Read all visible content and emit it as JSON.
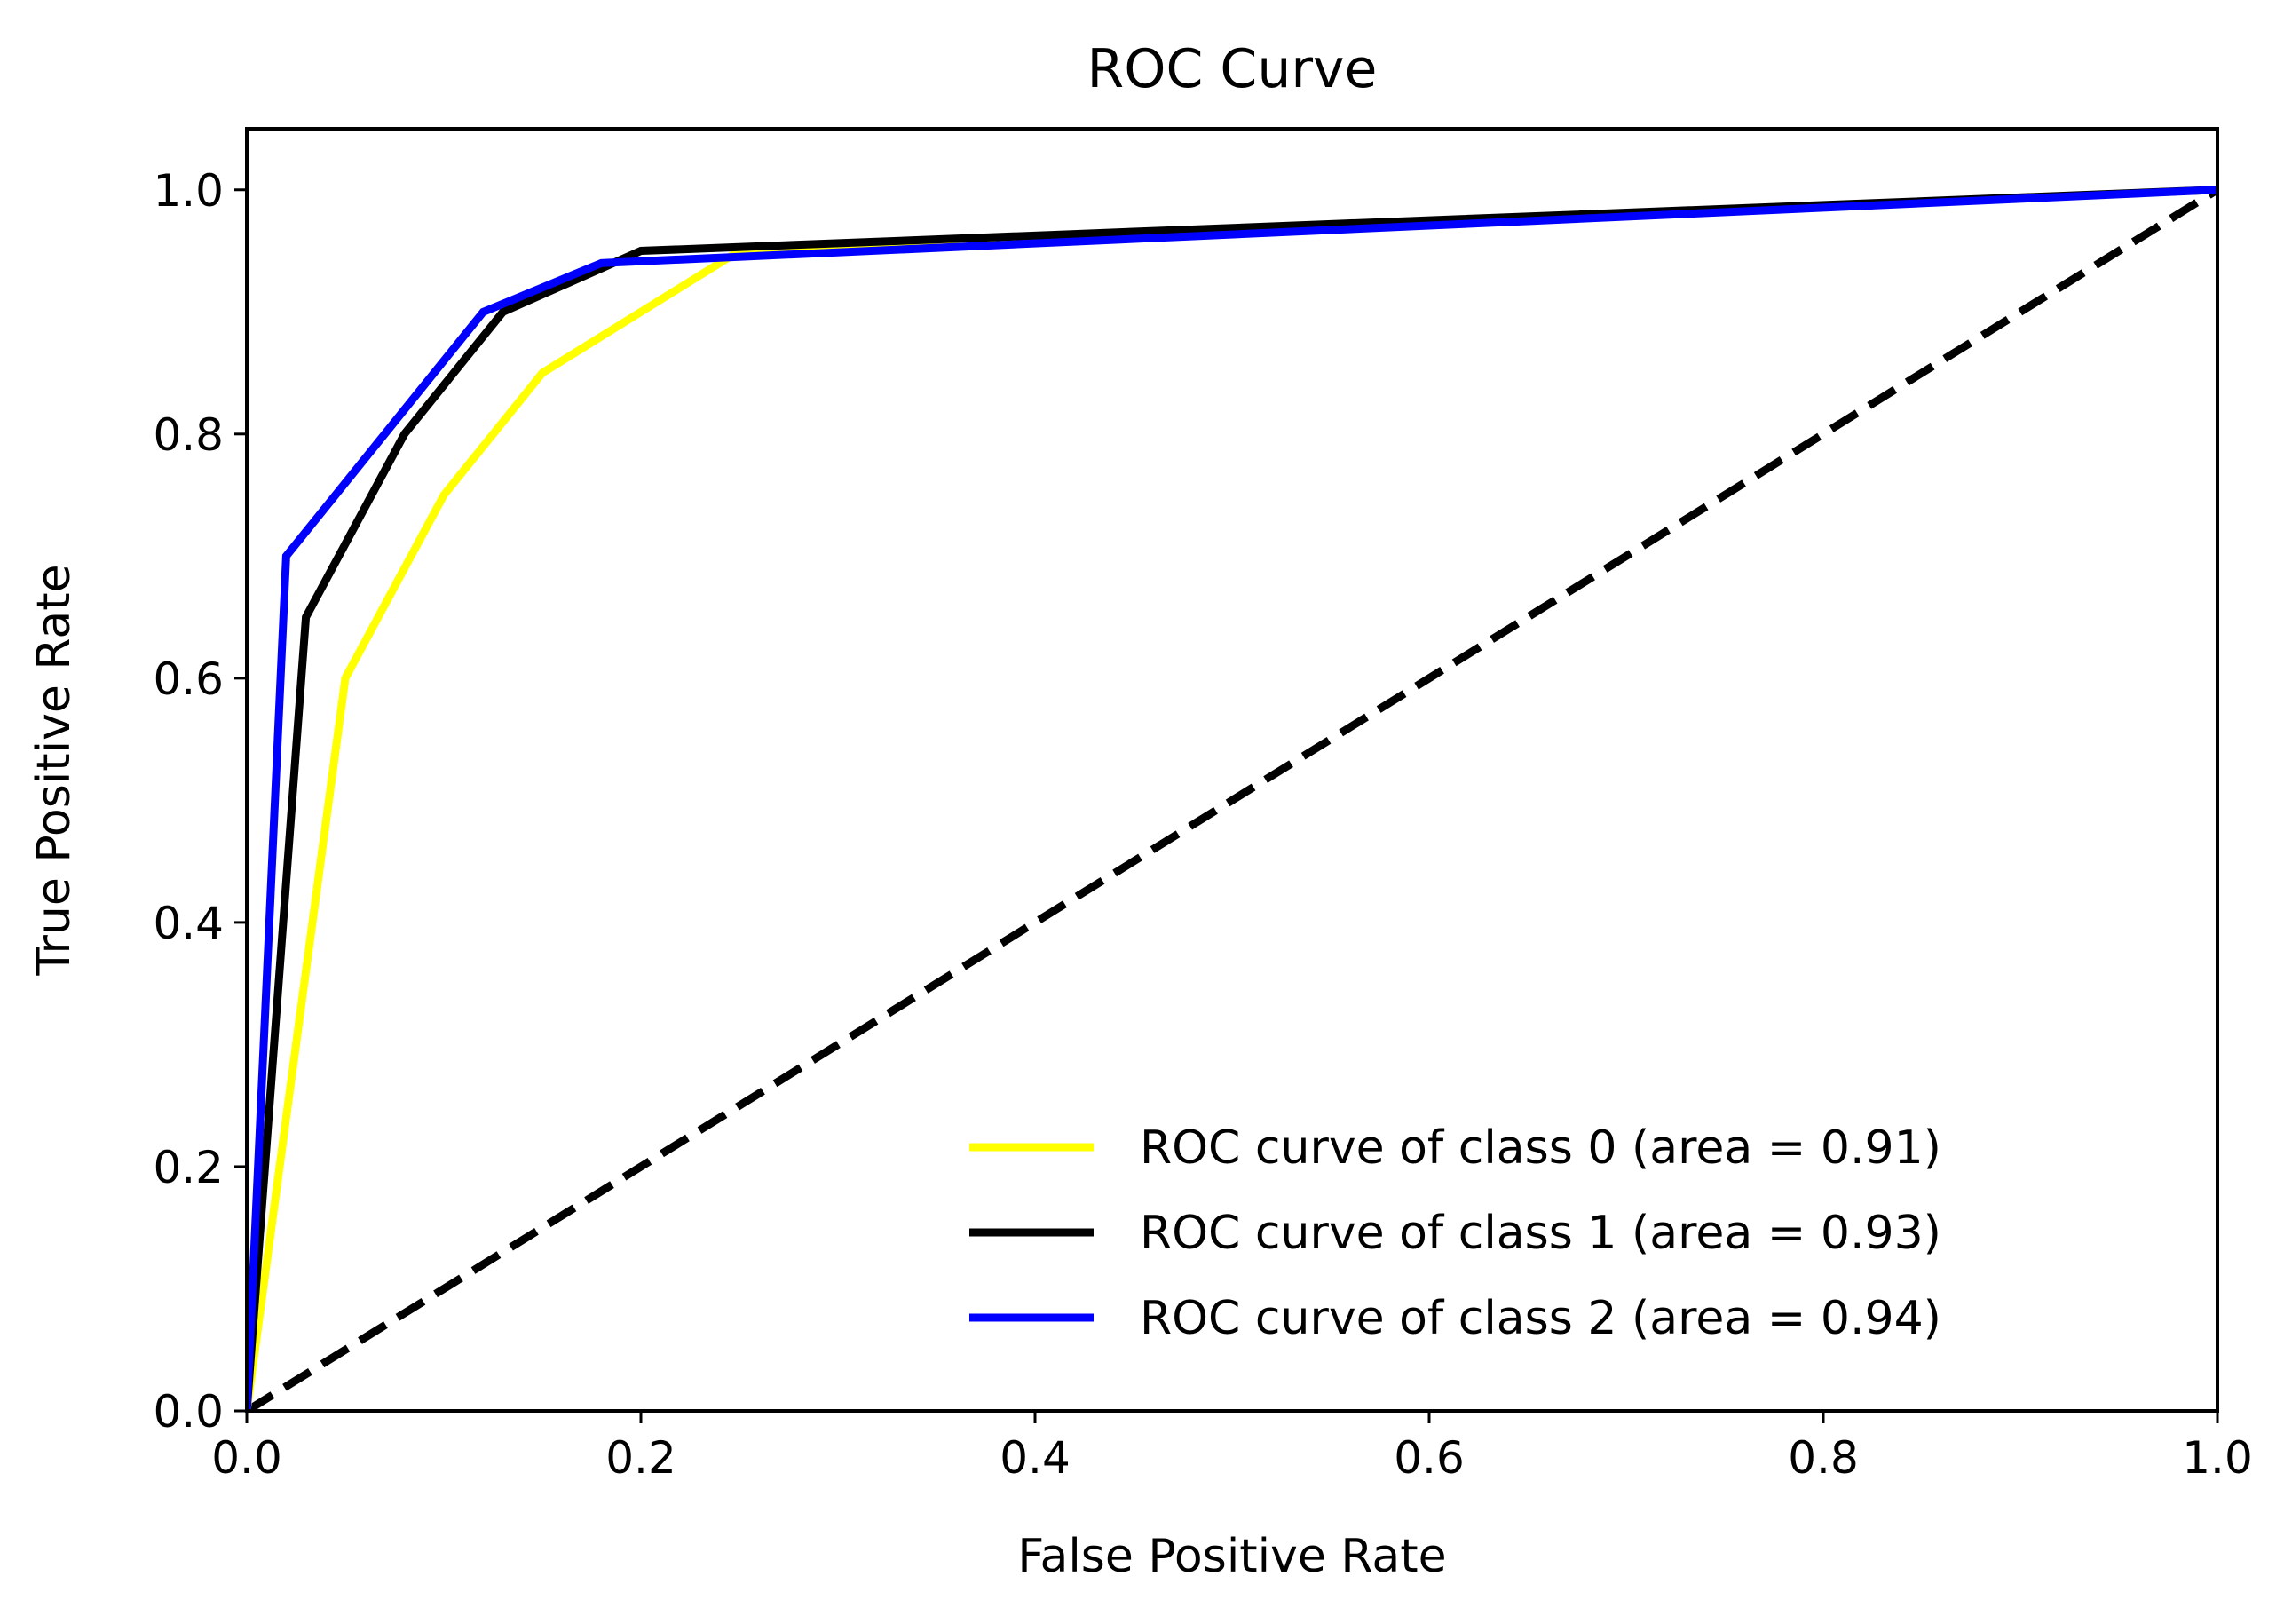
{
  "chart_data": {
    "type": "line",
    "title": "ROC Curve",
    "xlabel": "False Positive Rate",
    "ylabel": "True Positive Rate",
    "xlim": [
      0.0,
      1.0
    ],
    "ylim": [
      0.0,
      1.05
    ],
    "xticks": [
      "0.0",
      "0.2",
      "0.4",
      "0.6",
      "0.8",
      "1.0"
    ],
    "yticks": [
      "0.0",
      "0.2",
      "0.4",
      "0.6",
      "0.8",
      "1.0"
    ],
    "grid": false,
    "legend_position": "lower-right",
    "series": [
      {
        "name": "ROC curve of class 0 (area = 0.91)",
        "color": "#ffff00",
        "x": [
          0.0,
          0.05,
          0.1,
          0.15,
          0.25,
          1.0
        ],
        "y": [
          0.0,
          0.6,
          0.75,
          0.85,
          0.95,
          1.0
        ]
      },
      {
        "name": "ROC curve of class 1 (area = 0.93)",
        "color": "#000000",
        "x": [
          0.0,
          0.03,
          0.08,
          0.13,
          0.2,
          1.0
        ],
        "y": [
          0.0,
          0.65,
          0.8,
          0.9,
          0.95,
          1.0
        ]
      },
      {
        "name": "ROC curve of class 2 (area = 0.94)",
        "color": "#0000ff",
        "x": [
          0.0,
          0.02,
          0.12,
          0.18,
          1.0
        ],
        "y": [
          0.0,
          0.7,
          0.9,
          0.94,
          1.0
        ]
      }
    ],
    "reference_line": {
      "x": [
        0.0,
        1.0
      ],
      "y": [
        0.0,
        1.0
      ],
      "color": "#000000",
      "style": "dashed"
    }
  }
}
